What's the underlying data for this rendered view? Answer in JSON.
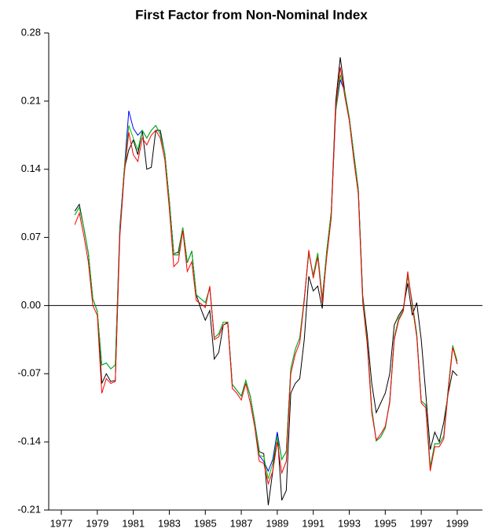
{
  "chart_data": {
    "type": "line",
    "title": "First Factor from Non-Nominal Index",
    "x": [
      1977.75,
      1978,
      1978.25,
      1978.5,
      1978.75,
      1979,
      1979.25,
      1979.5,
      1979.75,
      1980,
      1980.25,
      1980.5,
      1980.75,
      1981,
      1981.25,
      1981.5,
      1981.75,
      1982,
      1982.25,
      1982.5,
      1982.75,
      1983,
      1983.25,
      1983.5,
      1983.75,
      1984,
      1984.25,
      1984.5,
      1984.75,
      1985,
      1985.25,
      1985.5,
      1985.75,
      1986,
      1986.25,
      1986.5,
      1986.75,
      1987,
      1987.25,
      1987.5,
      1987.75,
      1988,
      1988.25,
      1988.5,
      1988.75,
      1989,
      1989.25,
      1989.5,
      1989.75,
      1990,
      1990.25,
      1990.5,
      1990.75,
      1991,
      1991.25,
      1991.5,
      1991.75,
      1992,
      1992.25,
      1992.5,
      1992.75,
      1993,
      1993.25,
      1993.5,
      1993.75,
      1994,
      1994.25,
      1994.5,
      1994.75,
      1995,
      1995.25,
      1995.5,
      1995.75,
      1996,
      1996.25,
      1996.5,
      1996.75,
      1997,
      1997.25,
      1997.5,
      1997.75,
      1998,
      1998.25,
      1998.5,
      1998.75,
      1999
    ],
    "series": [
      {
        "color": "#000000",
        "values": [
          0.097,
          0.104,
          0.08,
          0.054,
          0.007,
          -0.006,
          -0.08,
          -0.07,
          -0.078,
          -0.077,
          0.076,
          0.14,
          0.16,
          0.17,
          0.155,
          0.18,
          0.14,
          0.142,
          0.18,
          0.18,
          0.156,
          0.108,
          0.053,
          0.055,
          0.08,
          0.044,
          0.056,
          0.011,
          -0.003,
          -0.015,
          -0.005,
          -0.055,
          -0.048,
          -0.02,
          -0.017,
          -0.081,
          -0.087,
          -0.093,
          -0.077,
          -0.093,
          -0.12,
          -0.15,
          -0.152,
          -0.205,
          -0.17,
          -0.13,
          -0.2,
          -0.19,
          -0.09,
          -0.08,
          -0.075,
          -0.035,
          0.03,
          0.015,
          0.02,
          -0.003,
          0.056,
          0.096,
          0.21,
          0.255,
          0.22,
          0.193,
          0.156,
          0.12,
          0.01,
          -0.03,
          -0.08,
          -0.11,
          -0.1,
          -0.09,
          -0.07,
          -0.02,
          -0.01,
          -0.003,
          0.023,
          -0.01,
          0.003,
          -0.035,
          -0.09,
          -0.148,
          -0.13,
          -0.14,
          -0.12,
          -0.09,
          -0.067,
          -0.072
        ]
      },
      {
        "color": "#0000ff",
        "values": [
          0.093,
          0.101,
          0.08,
          0.054,
          0.007,
          -0.006,
          -0.061,
          -0.059,
          -0.065,
          -0.061,
          0.08,
          0.14,
          0.2,
          0.182,
          0.175,
          0.18,
          0.172,
          0.18,
          0.185,
          0.176,
          0.156,
          0.108,
          0.052,
          0.052,
          0.08,
          0.044,
          0.056,
          0.011,
          0.007,
          0.003,
          0.018,
          -0.033,
          -0.029,
          -0.017,
          -0.017,
          -0.081,
          -0.087,
          -0.093,
          -0.077,
          -0.093,
          -0.12,
          -0.154,
          -0.16,
          -0.17,
          -0.158,
          -0.13,
          -0.158,
          -0.15,
          -0.065,
          -0.045,
          -0.033,
          0.007,
          0.054,
          0.031,
          0.054,
          0.007,
          0.056,
          0.096,
          0.2,
          0.232,
          0.22,
          0.193,
          0.156,
          0.12,
          0.007,
          -0.037,
          -0.106,
          -0.139,
          -0.135,
          -0.126,
          -0.098,
          -0.033,
          -0.013,
          -0.005,
          0.031,
          0.003,
          -0.029,
          -0.098,
          -0.102,
          -0.166,
          -0.142,
          -0.142,
          -0.134,
          -0.085,
          -0.041,
          -0.06
        ]
      },
      {
        "color": "#00c000",
        "values": [
          0.093,
          0.101,
          0.08,
          0.054,
          0.007,
          -0.006,
          -0.061,
          -0.059,
          -0.065,
          -0.061,
          0.076,
          0.14,
          0.185,
          0.172,
          0.16,
          0.18,
          0.172,
          0.18,
          0.185,
          0.176,
          0.156,
          0.108,
          0.052,
          0.052,
          0.08,
          0.044,
          0.056,
          0.011,
          0.007,
          0.003,
          0.018,
          -0.033,
          -0.029,
          -0.017,
          -0.017,
          -0.081,
          -0.087,
          -0.093,
          -0.077,
          -0.093,
          -0.12,
          -0.154,
          -0.155,
          -0.178,
          -0.162,
          -0.134,
          -0.158,
          -0.15,
          -0.065,
          -0.045,
          -0.033,
          0.007,
          0.054,
          0.031,
          0.054,
          0.007,
          0.056,
          0.096,
          0.2,
          0.237,
          0.22,
          0.193,
          0.156,
          0.12,
          0.007,
          -0.037,
          -0.106,
          -0.139,
          -0.135,
          -0.126,
          -0.098,
          -0.033,
          -0.013,
          -0.005,
          0.031,
          0.003,
          -0.029,
          -0.098,
          -0.102,
          -0.166,
          -0.142,
          -0.142,
          -0.134,
          -0.085,
          -0.041,
          -0.057
        ]
      },
      {
        "color": "#ff0000",
        "values": [
          0.083,
          0.095,
          0.072,
          0.045,
          0.0,
          -0.01,
          -0.09,
          -0.075,
          -0.08,
          -0.078,
          0.07,
          0.135,
          0.178,
          0.155,
          0.148,
          0.172,
          0.165,
          0.175,
          0.18,
          0.172,
          0.15,
          0.1,
          0.04,
          0.045,
          0.077,
          0.035,
          0.045,
          0.005,
          0.002,
          -0.002,
          0.02,
          -0.035,
          -0.032,
          -0.02,
          -0.018,
          -0.085,
          -0.09,
          -0.097,
          -0.08,
          -0.1,
          -0.125,
          -0.16,
          -0.162,
          -0.183,
          -0.17,
          -0.14,
          -0.172,
          -0.16,
          -0.07,
          -0.05,
          -0.038,
          0.005,
          0.057,
          0.028,
          0.05,
          0.003,
          0.05,
          0.09,
          0.205,
          0.245,
          0.215,
          0.19,
          0.15,
          0.115,
          0.003,
          -0.04,
          -0.11,
          -0.138,
          -0.132,
          -0.124,
          -0.1,
          -0.035,
          -0.015,
          -0.006,
          0.035,
          0.0,
          -0.032,
          -0.1,
          -0.105,
          -0.17,
          -0.145,
          -0.145,
          -0.137,
          -0.088,
          -0.043,
          -0.06
        ]
      }
    ],
    "xlim": [
      1976.3,
      2000.4
    ],
    "xticks": [
      1977,
      1979,
      1981,
      1983,
      1985,
      1987,
      1989,
      1991,
      1993,
      1995,
      1997,
      1999
    ],
    "ylim": [
      -0.21,
      0.28
    ],
    "yticks": [
      -0.21,
      -0.14,
      -0.07,
      {
        "value": 0,
        "label": "0.00"
      },
      0.07,
      0.14,
      0.21,
      0.28
    ],
    "zero_line": true
  }
}
